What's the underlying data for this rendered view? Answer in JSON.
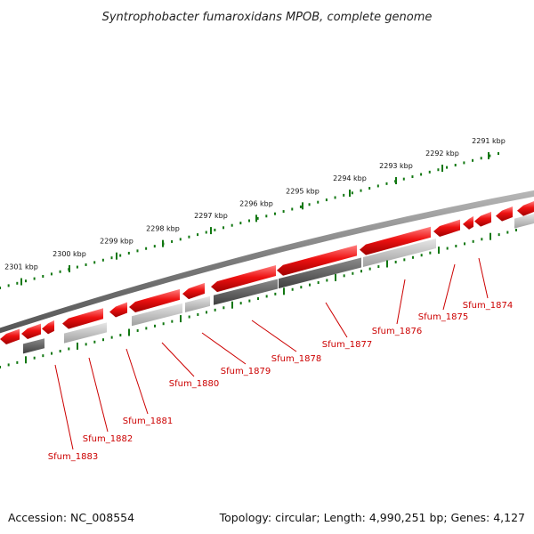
{
  "title": "Syntrophobacter fumaroxidans MPOB, complete genome",
  "footer": {
    "accession": "Accession: NC_008554",
    "topology": "Topology: circular; Length: 4,990,251 bp; Genes: 4,127"
  },
  "colors": {
    "forward_gene": "#ee1111",
    "reverse_gene_light": "#c8c8c8",
    "reverse_gene_dark": "#666666",
    "backbone": "#808080",
    "ticks": "#117711",
    "label": "#cc0000"
  },
  "scale_ticks": [
    {
      "label": "2301 kbp",
      "kbp": 2301
    },
    {
      "label": "2300 kbp",
      "kbp": 2300
    },
    {
      "label": "2299 kbp",
      "kbp": 2299
    },
    {
      "label": "2298 kbp",
      "kbp": 2298
    },
    {
      "label": "2297 kbp",
      "kbp": 2297
    },
    {
      "label": "2296 kbp",
      "kbp": 2296
    },
    {
      "label": "2295 kbp",
      "kbp": 2295
    },
    {
      "label": "2294 kbp",
      "kbp": 2294
    },
    {
      "label": "2293 kbp",
      "kbp": 2293
    },
    {
      "label": "2292 kbp",
      "kbp": 2292
    },
    {
      "label": "2291 kbp",
      "kbp": 2291
    }
  ],
  "gene_labels": [
    {
      "name": "Sfum_1883"
    },
    {
      "name": "Sfum_1882"
    },
    {
      "name": "Sfum_1881"
    },
    {
      "name": "Sfum_1880"
    },
    {
      "name": "Sfum_1879"
    },
    {
      "name": "Sfum_1878"
    },
    {
      "name": "Sfum_1877"
    },
    {
      "name": "Sfum_1876"
    },
    {
      "name": "Sfum_1875"
    },
    {
      "name": "Sfum_1874"
    }
  ]
}
